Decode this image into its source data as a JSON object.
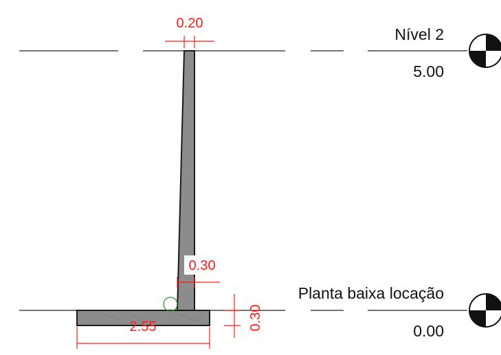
{
  "levels": [
    {
      "name": "Nível 2",
      "elevation": "5.00"
    },
    {
      "name": "Planta baixa locação",
      "elevation": "0.00"
    }
  ],
  "dimensions": {
    "wall_top_width": "0.20",
    "wall_base_width": "0.30",
    "footing_width": "2.55",
    "footing_thickness": "0.30"
  },
  "colors": {
    "dimension": "#ff1a1a",
    "concrete": "#8c8c8c",
    "outline": "#1a1a1a",
    "level_line": "#222222"
  }
}
